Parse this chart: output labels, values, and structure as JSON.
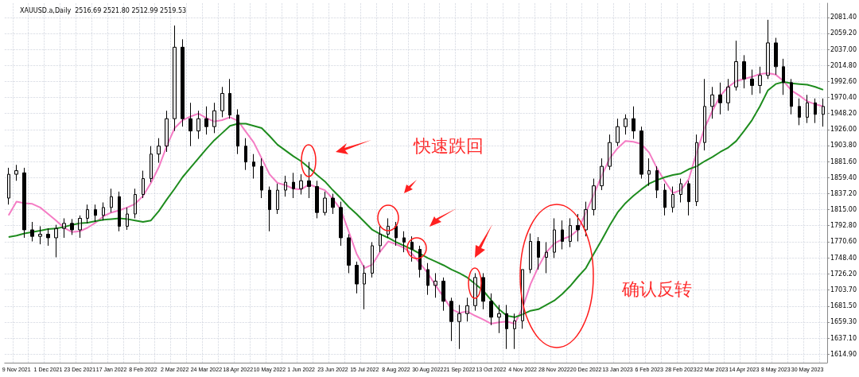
{
  "chart_data": {
    "type": "candlestick",
    "title": "XAUUSD.a,Daily  2516.69 2521.80 2512.99 2519.53",
    "categories": [
      null,
      "9 Nov 2021",
      null,
      null,
      null,
      "1 Dec 2021",
      null,
      null,
      null,
      "23 Dec 2021",
      null,
      null,
      null,
      "17 Jan 2022",
      null,
      null,
      null,
      "8 Feb 2022",
      null,
      null,
      null,
      "2 Mar 2022",
      null,
      null,
      null,
      "24 Mar 2022",
      null,
      null,
      null,
      "18 Apr 2022",
      null,
      null,
      null,
      "10 May 2022",
      null,
      null,
      null,
      "1 Jun 2022",
      null,
      null,
      null,
      "23 Jun 2022",
      null,
      null,
      null,
      "15 Jul 2022",
      null,
      null,
      null,
      "8 Aug 2022",
      null,
      null,
      null,
      "30 Aug 2022",
      null,
      null,
      null,
      "21 Sep 2022",
      null,
      null,
      null,
      "13 Oct 2022",
      null,
      null,
      null,
      "4 Nov 2022",
      null,
      null,
      null,
      "28 Nov 2022",
      null,
      null,
      null,
      "20 Dec 2022",
      null,
      null,
      null,
      "13 Jan 2023",
      null,
      null,
      null,
      "6 Feb 2023",
      null,
      null,
      null,
      "28 Feb 2023",
      null,
      null,
      null,
      "22 Mar 2023",
      null,
      null,
      null,
      "14 Apr 2023",
      null,
      null,
      null,
      "8 May 2023",
      null,
      null,
      null,
      "30 May 2023",
      null,
      null
    ],
    "ohlc": [
      [
        1831,
        1873,
        1822,
        1864
      ],
      [
        1864,
        1877,
        1855,
        1869
      ],
      [
        1866,
        1873,
        1776,
        1787
      ],
      [
        1787,
        1798,
        1771,
        1778
      ],
      [
        1778,
        1792,
        1767,
        1781
      ],
      [
        1781,
        1789,
        1765,
        1776
      ],
      [
        1776,
        1794,
        1749,
        1789
      ],
      [
        1789,
        1803,
        1776,
        1796
      ],
      [
        1796,
        1802,
        1780,
        1787
      ],
      [
        1787,
        1807,
        1776,
        1803
      ],
      [
        1803,
        1822,
        1796,
        1815
      ],
      [
        1815,
        1822,
        1798,
        1807
      ],
      [
        1807,
        1825,
        1800,
        1818
      ],
      [
        1818,
        1844,
        1811,
        1833
      ],
      [
        1833,
        1840,
        1785,
        1792
      ],
      [
        1792,
        1818,
        1787,
        1809
      ],
      [
        1809,
        1844,
        1803,
        1836
      ],
      [
        1836,
        1869,
        1831,
        1858
      ],
      [
        1858,
        1903,
        1853,
        1892
      ],
      [
        1892,
        1914,
        1880,
        1903
      ],
      [
        1903,
        1952,
        1895,
        1941
      ],
      [
        1941,
        2070,
        1924,
        2040
      ],
      [
        2040,
        2051,
        1930,
        1941
      ],
      [
        1941,
        1963,
        1903,
        1924
      ],
      [
        1924,
        1952,
        1913,
        1941
      ],
      [
        1941,
        1958,
        1919,
        1930
      ],
      [
        1930,
        1963,
        1921,
        1952
      ],
      [
        1952,
        1985,
        1943,
        1976
      ],
      [
        1976,
        1996,
        1941,
        1946
      ],
      [
        1946,
        1954,
        1892,
        1903
      ],
      [
        1903,
        1914,
        1870,
        1881
      ],
      [
        1881,
        1892,
        1858,
        1875
      ],
      [
        1875,
        1886,
        1831,
        1842
      ],
      [
        1842,
        1847,
        1785,
        1815
      ],
      [
        1815,
        1851,
        1809,
        1842
      ],
      [
        1842,
        1862,
        1833,
        1853
      ],
      [
        1853,
        1866,
        1831,
        1844
      ],
      [
        1844,
        1864,
        1836,
        1855
      ],
      [
        1855,
        1881,
        1831,
        1847
      ],
      [
        1847,
        1855,
        1803,
        1811
      ],
      [
        1811,
        1840,
        1807,
        1831
      ],
      [
        1831,
        1837,
        1809,
        1818
      ],
      [
        1818,
        1826,
        1765,
        1776
      ],
      [
        1776,
        1781,
        1727,
        1738
      ],
      [
        1738,
        1743,
        1699,
        1712
      ],
      [
        1712,
        1738,
        1677,
        1727
      ],
      [
        1727,
        1770,
        1721,
        1765
      ],
      [
        1765,
        1792,
        1756,
        1781
      ],
      [
        1781,
        1803,
        1776,
        1792
      ],
      [
        1792,
        1798,
        1765,
        1776
      ],
      [
        1776,
        1785,
        1756,
        1770
      ],
      [
        1770,
        1778,
        1743,
        1760
      ],
      [
        1760,
        1765,
        1721,
        1732
      ],
      [
        1732,
        1741,
        1697,
        1710
      ],
      [
        1710,
        1727,
        1693,
        1716
      ],
      [
        1716,
        1721,
        1675,
        1688
      ],
      [
        1688,
        1693,
        1633,
        1660
      ],
      [
        1660,
        1683,
        1622,
        1671
      ],
      [
        1671,
        1693,
        1660,
        1682
      ],
      [
        1682,
        1727,
        1675,
        1721
      ],
      [
        1721,
        1727,
        1677,
        1688
      ],
      [
        1688,
        1699,
        1655,
        1666
      ],
      [
        1666,
        1683,
        1644,
        1671
      ],
      [
        1671,
        1683,
        1622,
        1650
      ],
      [
        1650,
        1671,
        1622,
        1661
      ],
      [
        1661,
        1732,
        1650,
        1732
      ],
      [
        1732,
        1782,
        1727,
        1771
      ],
      [
        1771,
        1777,
        1732,
        1749
      ],
      [
        1749,
        1770,
        1727,
        1756
      ],
      [
        1756,
        1803,
        1748,
        1787
      ],
      [
        1787,
        1800,
        1760,
        1771
      ],
      [
        1771,
        1803,
        1763,
        1793
      ],
      [
        1793,
        1809,
        1771,
        1787
      ],
      [
        1787,
        1826,
        1778,
        1815
      ],
      [
        1815,
        1858,
        1807,
        1848
      ],
      [
        1848,
        1886,
        1842,
        1875
      ],
      [
        1875,
        1919,
        1870,
        1908
      ],
      [
        1908,
        1941,
        1903,
        1930
      ],
      [
        1930,
        1947,
        1919,
        1941
      ],
      [
        1941,
        1958,
        1913,
        1924
      ],
      [
        1924,
        1930,
        1858,
        1864
      ],
      [
        1864,
        1886,
        1848,
        1869
      ],
      [
        1869,
        1875,
        1831,
        1842
      ],
      [
        1842,
        1851,
        1807,
        1818
      ],
      [
        1818,
        1847,
        1811,
        1836
      ],
      [
        1836,
        1858,
        1825,
        1851
      ],
      [
        1851,
        1855,
        1807,
        1826
      ],
      [
        1826,
        1919,
        1820,
        1908
      ],
      [
        1908,
        1996,
        1897,
        1958
      ],
      [
        1958,
        1985,
        1941,
        1974
      ],
      [
        1974,
        1991,
        1947,
        1963
      ],
      [
        1963,
        1996,
        1952,
        1985
      ],
      [
        1985,
        2049,
        1980,
        2020
      ],
      [
        2020,
        2029,
        1983,
        1996
      ],
      [
        1996,
        2009,
        1974,
        1987
      ],
      [
        1987,
        2013,
        1976,
        2001
      ],
      [
        2001,
        2078,
        1996,
        2046
      ],
      [
        2046,
        2053,
        2002,
        2013
      ],
      [
        2013,
        2024,
        1974,
        1991
      ],
      [
        1991,
        1996,
        1947,
        1958
      ],
      [
        1958,
        1969,
        1932,
        1943
      ],
      [
        1943,
        1974,
        1935,
        1963
      ],
      [
        1963,
        1969,
        1935,
        1947
      ],
      [
        1947,
        1969,
        1930,
        1958
      ]
    ],
    "series": [
      {
        "type": "line",
        "color": "#f47cc4",
        "values": [
          1807,
          1826,
          1824,
          1823,
          1818,
          1809,
          1800,
          1790,
          1784,
          1785,
          1790,
          1797,
          1806,
          1811,
          1814,
          1818,
          1823,
          1834,
          1852,
          1874,
          1903,
          1928,
          1939,
          1944,
          1948,
          1942,
          1937,
          1939,
          1943,
          1938,
          1923,
          1908,
          1886,
          1864,
          1852,
          1849,
          1844,
          1843,
          1850,
          1846,
          1842,
          1830,
          1815,
          1785,
          1754,
          1734,
          1739,
          1757,
          1771,
          1767,
          1762,
          1754,
          1741,
          1727,
          1710,
          1694,
          1677,
          1672,
          1674,
          1668,
          1663,
          1657,
          1659,
          1660,
          1657,
          1679,
          1712,
          1736,
          1756,
          1768,
          1774,
          1778,
          1787,
          1811,
          1836,
          1862,
          1886,
          1900,
          1910,
          1909,
          1906,
          1894,
          1872,
          1854,
          1838,
          1842,
          1857,
          1894,
          1928,
          1952,
          1973,
          1985,
          1993,
          1996,
          1999,
          2003,
          2004,
          2002,
          1993,
          1980,
          1973,
          1965,
          1961,
          1958
        ]
      },
      {
        "type": "line",
        "color": "#1e8c1e",
        "values": [
          1777,
          1779,
          1782,
          1784,
          1786,
          1788,
          1789,
          1791,
          1794,
          1796,
          1797,
          1799,
          1801,
          1802,
          1803,
          1802,
          1800,
          1798,
          1800,
          1813,
          1829,
          1844,
          1860,
          1873,
          1886,
          1899,
          1911,
          1921,
          1931,
          1934,
          1934,
          1931,
          1928,
          1917,
          1905,
          1897,
          1889,
          1882,
          1873,
          1863,
          1854,
          1842,
          1831,
          1819,
          1809,
          1798,
          1787,
          1781,
          1776,
          1770,
          1765,
          1760,
          1754,
          1748,
          1743,
          1738,
          1732,
          1727,
          1721,
          1712,
          1703,
          1690,
          1677,
          1668,
          1666,
          1670,
          1675,
          1677,
          1683,
          1689,
          1698,
          1709,
          1722,
          1734,
          1754,
          1773,
          1793,
          1811,
          1824,
          1834,
          1843,
          1851,
          1856,
          1860,
          1863,
          1865,
          1871,
          1875,
          1882,
          1888,
          1895,
          1901,
          1910,
          1924,
          1939,
          1958,
          1980,
          1989,
          1992,
          1990,
          1989,
          1988,
          1985,
          1981
        ]
      }
    ],
    "ylim": [
      1603,
      2101
    ],
    "yticks": [
      {
        "value": 2081.4,
        "label": "2081.40"
      },
      {
        "value": 2059.2,
        "label": "2059.20"
      },
      {
        "value": 2037,
        "label": "2037.00"
      },
      {
        "value": 2014.8,
        "label": "2014.80"
      },
      {
        "value": 1992.6,
        "label": "1992.60"
      },
      {
        "value": 1970.4,
        "label": "1970.40"
      },
      {
        "value": 1948.2,
        "label": "1948.20"
      },
      {
        "value": 1926,
        "label": "1926.00"
      },
      {
        "value": 1903.8,
        "label": "1903.80"
      },
      {
        "value": 1881.6,
        "label": "1881.60"
      },
      {
        "value": 1859.4,
        "label": "1859.40"
      },
      {
        "value": 1837.2,
        "label": "1837.20"
      },
      {
        "value": 1815,
        "label": "1815.00"
      },
      {
        "value": 1792.8,
        "label": "1792.80"
      },
      {
        "value": 1770.6,
        "label": "1770.60"
      },
      {
        "value": 1748.4,
        "label": "1748.40"
      },
      {
        "value": 1726.2,
        "label": "1726.20"
      },
      {
        "value": 1703.7,
        "label": "1703.70"
      },
      {
        "value": 1681.5,
        "label": "1681.50"
      },
      {
        "value": 1659.3,
        "label": "1659.30"
      },
      {
        "value": 1637.1,
        "label": "1637.10"
      },
      {
        "value": 1614.9,
        "label": "1614.90"
      }
    ],
    "grid": true,
    "annotations": [
      "快速跌回",
      "确认反转"
    ]
  }
}
